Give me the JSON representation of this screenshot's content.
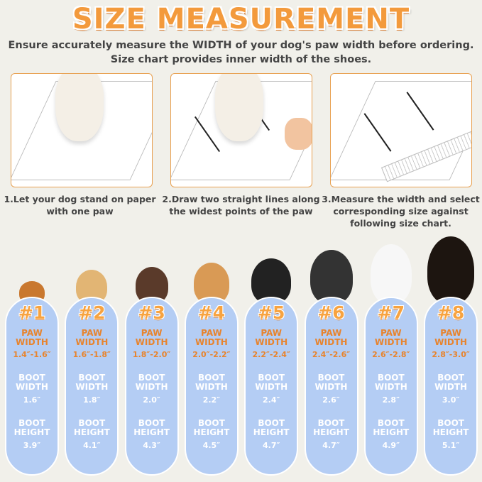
{
  "title": "SIZE MEASUREMENT",
  "subtitle_lines": [
    "Ensure accurately measure the WIDTH of your dog's paw width before ordering.",
    "Size chart provides inner width of the shoes."
  ],
  "steps": [
    {
      "caption_lines": [
        "1.Let your dog stand on paper",
        "with one paw"
      ]
    },
    {
      "caption_lines": [
        "2.Draw two straight lines along",
        "the widest points of the paw"
      ]
    },
    {
      "caption_lines": [
        "3.Measure the width and select",
        "corresponding size against",
        "following size chart."
      ]
    }
  ],
  "labels": {
    "paw_1": "PAW",
    "paw_2": "WIDTH",
    "boot_1": "BOOT",
    "width_2": "WIDTH",
    "height_2": "HEIGHT"
  },
  "sizes": [
    {
      "num": "#1",
      "paw": "1.4″-1.6″",
      "boot_width": "1.6″",
      "boot_height": "3.9″"
    },
    {
      "num": "#2",
      "paw": "1.6″-1.8″",
      "boot_width": "1.8″",
      "boot_height": "4.1″"
    },
    {
      "num": "#3",
      "paw": "1.8″-2.0″",
      "boot_width": "2.0″",
      "boot_height": "4.3″"
    },
    {
      "num": "#4",
      "paw": "2.0″-2.2″",
      "boot_width": "2.2″",
      "boot_height": "4.5″"
    },
    {
      "num": "#5",
      "paw": "2.2″-2.4″",
      "boot_width": "2.4″",
      "boot_height": "4.7″"
    },
    {
      "num": "#6",
      "paw": "2.4″-2.6″",
      "boot_width": "2.6″",
      "boot_height": "4.7″"
    },
    {
      "num": "#7",
      "paw": "2.6″-2.8″",
      "boot_width": "2.8″",
      "boot_height": "4.9″"
    },
    {
      "num": "#8",
      "paw": "2.8″-3.0″",
      "boot_width": "3.0″",
      "boot_height": "5.1″"
    }
  ],
  "colors": {
    "accent": "#f39a3c",
    "pill": "#b4cdf4",
    "background": "#f1f0ea"
  }
}
